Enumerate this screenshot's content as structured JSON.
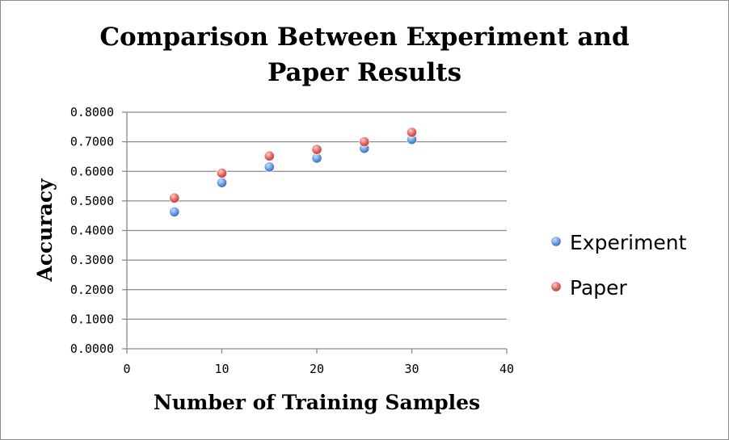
{
  "chart_data": {
    "type": "scatter",
    "title_lines": [
      "Comparison Between Experiment and",
      "Paper Results"
    ],
    "xlabel": "Number of Training Samples",
    "ylabel": "Accuracy",
    "xlim": [
      0,
      40
    ],
    "ylim": [
      0,
      0.8
    ],
    "x_ticks": [
      "0",
      "10",
      "20",
      "30",
      "40"
    ],
    "y_ticks": [
      "0.0000",
      "0.1000",
      "0.2000",
      "0.3000",
      "0.4000",
      "0.5000",
      "0.6000",
      "0.7000",
      "0.8000"
    ],
    "grid": "horizontal",
    "legend_position": "right",
    "x": [
      5,
      10,
      15,
      20,
      25,
      30
    ],
    "series": [
      {
        "name": "Experiment",
        "color": "#4a86d8",
        "values": [
          0.463,
          0.562,
          0.615,
          0.645,
          0.678,
          0.708
        ]
      },
      {
        "name": "Paper",
        "color": "#d9504b",
        "values": [
          0.51,
          0.594,
          0.652,
          0.674,
          0.7,
          0.732
        ]
      }
    ]
  }
}
